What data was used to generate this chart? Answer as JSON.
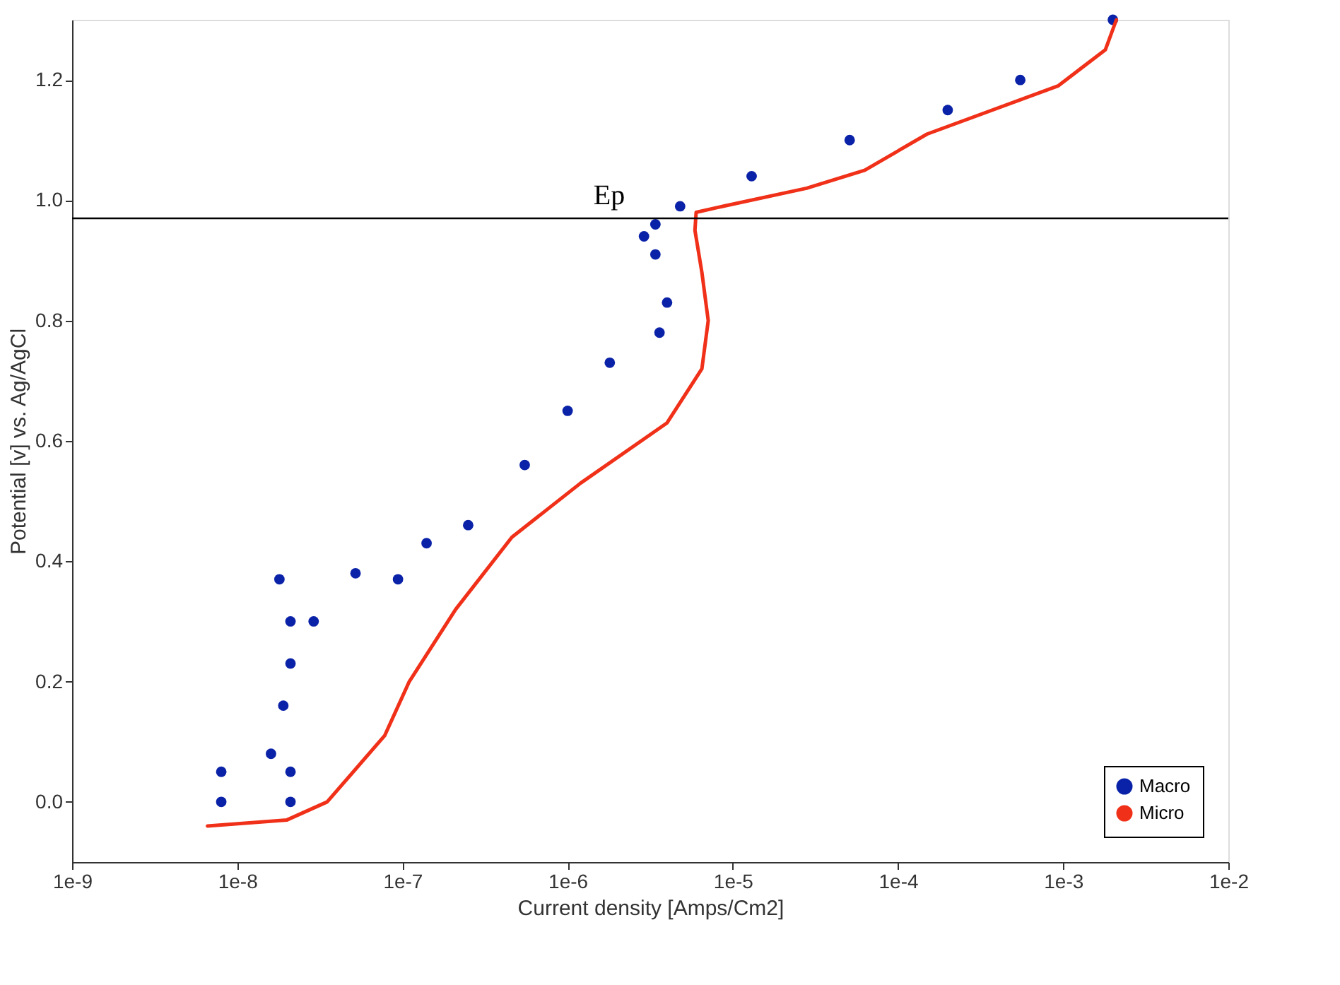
{
  "chart_data": {
    "type": "line",
    "xlabel": "Current density [Amps/Cm2]",
    "ylabel": "Potential [v] vs. Ag/AgCl",
    "log": "x",
    "xlim": [
      1e-09,
      0.01
    ],
    "ylim": [
      -0.1,
      1.3
    ],
    "xticks": [
      {
        "value": 1e-09,
        "label": "1e-9"
      },
      {
        "value": 1e-08,
        "label": "1e-8"
      },
      {
        "value": 1e-07,
        "label": "1e-7"
      },
      {
        "value": 1e-06,
        "label": "1e-6"
      },
      {
        "value": 1e-05,
        "label": "1e-5"
      },
      {
        "value": 0.0001,
        "label": "1e-4"
      },
      {
        "value": 0.001,
        "label": "1e-3"
      },
      {
        "value": 0.01,
        "label": "1e-2"
      }
    ],
    "yticks": [
      {
        "value": 0,
        "label": "0.0"
      },
      {
        "value": 0.2,
        "label": "0.2"
      },
      {
        "value": 0.4,
        "label": "0.4"
      },
      {
        "value": 0.6,
        "label": "0.6"
      },
      {
        "value": 0.8,
        "label": "0.8"
      },
      {
        "value": 1.0,
        "label": "1.0"
      },
      {
        "value": 1.2,
        "label": "1.2"
      }
    ],
    "grid": false,
    "legend": "bottom right",
    "ref_lines": [
      {
        "axis": "y",
        "value": 0.97,
        "label": "Ep",
        "color": "#000000"
      }
    ],
    "series": [
      {
        "name": "Macro",
        "type": "scatter",
        "marker": "circle",
        "color": "#0a22a8",
        "x": [
          8e-09,
          8e-09,
          2.1e-08,
          2.1e-08,
          1.6e-08,
          1.9e-08,
          2.1e-08,
          2.1e-08,
          1.8e-08,
          2.9e-08,
          5.2e-08,
          9.4e-08,
          1.4e-07,
          2.5e-07,
          5.5e-07,
          1e-06,
          1.8e-06,
          3.6e-06,
          4e-06,
          3.4e-06,
          2.9e-06,
          3.4e-06,
          4.8e-06,
          1.3e-05,
          5.1e-05,
          0.0002,
          0.00055,
          0.002
        ],
        "values": [
          0.0,
          0.05,
          0.0,
          0.05,
          0.08,
          0.16,
          0.23,
          0.3,
          0.37,
          0.3,
          0.38,
          0.37,
          0.43,
          0.46,
          0.56,
          0.65,
          0.73,
          0.78,
          0.83,
          0.91,
          0.94,
          0.96,
          0.99,
          1.04,
          1.1,
          1.15,
          1.2,
          1.3
        ]
      },
      {
        "name": "Micro",
        "marker": "none",
        "line_style": "solid",
        "color": "#f03018",
        "x": [
          6.6e-09,
          2e-08,
          3.5e-08,
          7.8e-08,
          1.1e-07,
          2.1e-07,
          4.6e-07,
          1.2e-06,
          4e-06,
          6.5e-06,
          7.1e-06,
          6.5e-06,
          5.9e-06,
          6e-06,
          8.7e-06,
          2.8e-05,
          6.3e-05,
          0.00015,
          0.00093,
          0.0018,
          0.0021
        ],
        "values": [
          -0.04,
          -0.03,
          0.0,
          0.11,
          0.2,
          0.32,
          0.44,
          0.53,
          0.63,
          0.72,
          0.8,
          0.88,
          0.95,
          0.98,
          0.99,
          1.02,
          1.05,
          1.11,
          1.19,
          1.25,
          1.3
        ]
      }
    ]
  }
}
